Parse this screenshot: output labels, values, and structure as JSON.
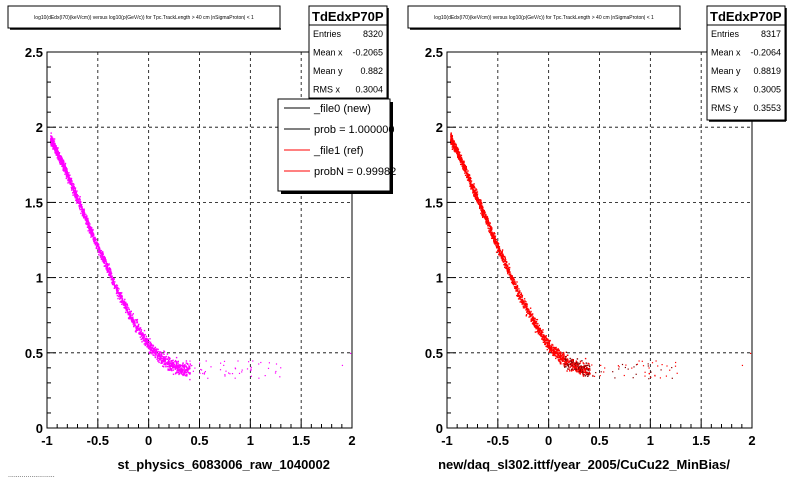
{
  "colors": {
    "frame": "#000000",
    "background": "#ffffff",
    "grid": "#000000",
    "new_points": "#ff00ff",
    "ref_points": "#ff0000",
    "dark_points": "#880000",
    "legend_new_line": "#000000",
    "legend_ref_line": "#ff0000"
  },
  "footer": "........................",
  "legend": {
    "entries": [
      {
        "label": "_file0 (new)",
        "color": "#000000"
      },
      {
        "label": "prob = 1.000000",
        "color": "#000000"
      },
      {
        "label": "_file1 (ref)",
        "color": "#ff0000"
      },
      {
        "label": "probN = 0.99982",
        "color": "#ff0000"
      }
    ]
  },
  "chart_data": [
    {
      "type": "scatter",
      "title": "log10(dEdx(I70)(keV/cm)) versus log10(p(GeV/c)) for Tpc.TrackLength > 40 cm |nSigmaProton| < 1",
      "xlabel": "st_physics_6083006_raw_1040002",
      "ylabel": "",
      "xlim": [
        -1,
        2
      ],
      "ylim": [
        0,
        2.5
      ],
      "x_ticks": [
        "-1",
        "-0.5",
        "0",
        "0.5",
        "1",
        "1.5",
        "2"
      ],
      "y_ticks": [
        "0",
        "0.5",
        "1",
        "1.5",
        "2",
        "2.5"
      ],
      "grid": true,
      "point_color": "#ff00ff",
      "curve": {
        "x": [
          -0.97,
          -0.9,
          -0.8,
          -0.7,
          -0.6,
          -0.5,
          -0.4,
          -0.3,
          -0.2,
          -0.1,
          0.0,
          0.1,
          0.2,
          0.3,
          0.4
        ],
        "y": [
          1.93,
          1.83,
          1.68,
          1.52,
          1.36,
          1.2,
          1.05,
          0.9,
          0.77,
          0.65,
          0.55,
          0.48,
          0.43,
          0.4,
          0.39
        ]
      },
      "tail": {
        "x_range": [
          0.4,
          1.3
        ],
        "y_range": [
          0.33,
          0.45
        ]
      },
      "stats": {
        "title": "TdEdxP70P",
        "rows": [
          {
            "label": "Entries",
            "value": "8320"
          },
          {
            "label": "Mean x",
            "value": "-0.2065"
          },
          {
            "label": "Mean y",
            "value": "0.882"
          },
          {
            "label": "RMS x",
            "value": "0.3004"
          }
        ]
      }
    },
    {
      "type": "scatter",
      "title": "log10(dEdx(I70)(keV/cm)) versus log10(p(GeV/c)) for Tpc.TrackLength > 40 cm |nSigmaProton| < 1",
      "xlabel": "new/daq_sl302.ittf/year_2005/CuCu22_MinBias/",
      "ylabel": "",
      "xlim": [
        -1,
        2
      ],
      "ylim": [
        0,
        2.5
      ],
      "x_ticks": [
        "-1",
        "-0.5",
        "0",
        "0.5",
        "1",
        "1.5",
        "2"
      ],
      "y_ticks": [
        "0",
        "0.5",
        "1",
        "1.5",
        "2",
        "2.5"
      ],
      "grid": true,
      "point_color": "#ff0000",
      "curve": {
        "x": [
          -0.97,
          -0.9,
          -0.8,
          -0.7,
          -0.6,
          -0.5,
          -0.4,
          -0.3,
          -0.2,
          -0.1,
          0.0,
          0.1,
          0.2,
          0.3,
          0.4
        ],
        "y": [
          1.93,
          1.83,
          1.68,
          1.52,
          1.36,
          1.2,
          1.05,
          0.9,
          0.77,
          0.65,
          0.55,
          0.48,
          0.43,
          0.4,
          0.39
        ]
      },
      "tail": {
        "x_range": [
          0.4,
          1.3
        ],
        "y_range": [
          0.33,
          0.45
        ]
      },
      "stats": {
        "title": "TdEdxP70P",
        "rows": [
          {
            "label": "Entries",
            "value": "8317"
          },
          {
            "label": "Mean x",
            "value": "-0.2064"
          },
          {
            "label": "Mean y",
            "value": "0.8819"
          },
          {
            "label": "RMS x",
            "value": "0.3005"
          },
          {
            "label": "RMS y",
            "value": "0.3553"
          }
        ]
      }
    }
  ]
}
